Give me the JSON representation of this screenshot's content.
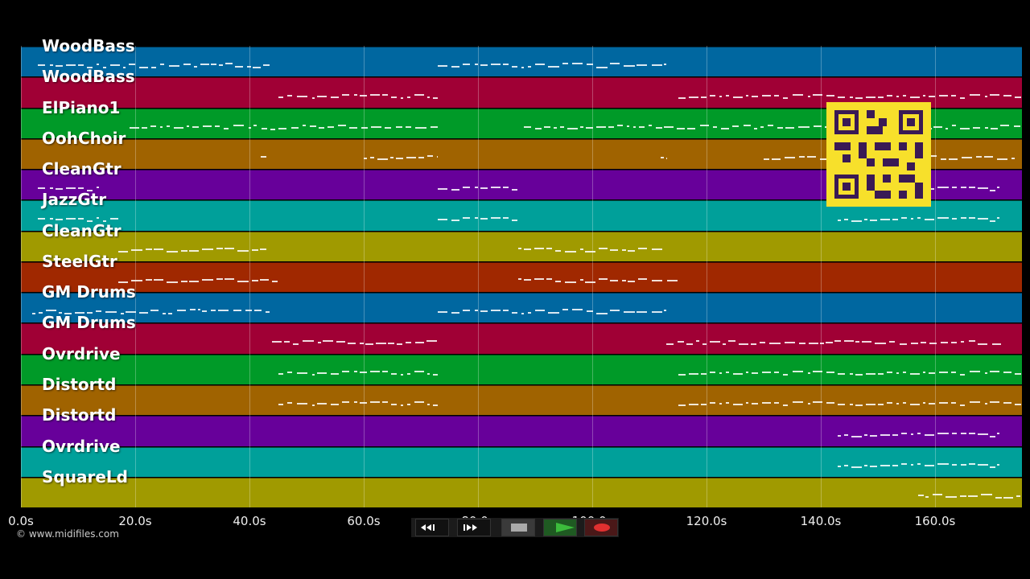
{
  "tracks": [
    {
      "label": "WoodBass",
      "color": "#0067a0"
    },
    {
      "label": "WoodBass",
      "color": "#a00035"
    },
    {
      "label": "ElPiano1",
      "color": "#009a28"
    },
    {
      "label": "OohChoir",
      "color": "#a06300"
    },
    {
      "label": "CleanGtr",
      "color": "#67009a"
    },
    {
      "label": "JazzGtr",
      "color": "#00a09a"
    },
    {
      "label": "CleanGtr",
      "color": "#a09a00"
    },
    {
      "label": "SteelGtr",
      "color": "#a02800"
    },
    {
      "label": "GM Drums",
      "color": "#0067a0"
    },
    {
      "label": "GM Drums",
      "color": "#a00035"
    },
    {
      "label": "Ovrdrive",
      "color": "#009a28"
    },
    {
      "label": "Distortd",
      "color": "#a06300"
    },
    {
      "label": "Distortd",
      "color": "#67009a"
    },
    {
      "label": "Ovrdrive",
      "color": "#00a09a"
    },
    {
      "label": "SquareLd",
      "color": "#a09a00"
    }
  ],
  "timeline": {
    "ticks": [
      "0.0s",
      "20.0s",
      "40.0s",
      "60.0s",
      "80.0s",
      "100.0s",
      "120.0s",
      "140.0s",
      "160.0s"
    ],
    "max_seconds": 175
  },
  "notes": [
    [
      3,
      44
    ],
    [
      73,
      113
    ],
    [
      45,
      73
    ],
    [
      115,
      175
    ],
    [
      19,
      73
    ],
    [
      88,
      175
    ],
    [
      42,
      43
    ],
    [
      60,
      73
    ],
    [
      112,
      113
    ],
    [
      130,
      174
    ],
    [
      3,
      14
    ],
    [
      73,
      87
    ],
    [
      143,
      172
    ],
    [
      3,
      17
    ],
    [
      73,
      87
    ],
    [
      143,
      172
    ],
    [
      17,
      43
    ],
    [
      87,
      113
    ],
    [
      17,
      45
    ],
    [
      87,
      115
    ],
    [
      2,
      44
    ],
    [
      73,
      113
    ],
    [
      44,
      73
    ],
    [
      113,
      172
    ],
    [
      45,
      73
    ],
    [
      115,
      175
    ],
    [
      45,
      73
    ],
    [
      115,
      175
    ],
    [
      143,
      172
    ],
    [
      143,
      172
    ],
    [
      157,
      175
    ]
  ],
  "note_rows": [
    1,
    1,
    2,
    2,
    3,
    3,
    4,
    4,
    4,
    4,
    5,
    5,
    5,
    6,
    6,
    6,
    7,
    7,
    8,
    8,
    9,
    9,
    10,
    10,
    11,
    11,
    12,
    12,
    13,
    14,
    15
  ],
  "copyright": "© www.midifiles.com",
  "transport": {
    "rewind_label": "rewind",
    "forward_label": "fast-forward",
    "stop_label": "stop",
    "play_label": "play",
    "record_label": "record"
  }
}
